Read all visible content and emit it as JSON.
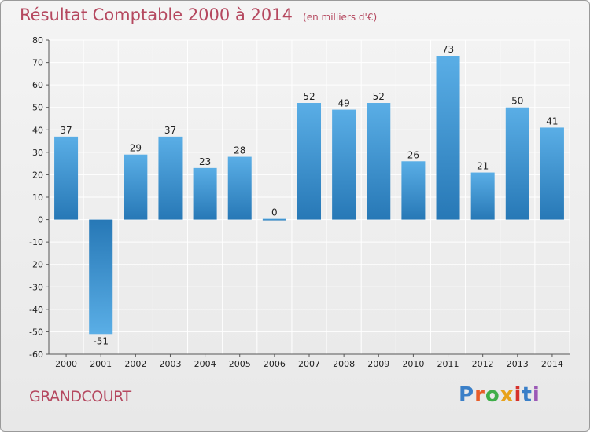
{
  "title": "Résultat Comptable 2000 à 2014",
  "subtitle": "(en milliers d'€)",
  "place": "GRANDCOURT",
  "logo": {
    "text": "Proxiti",
    "letter_colors": [
      "#3a7fc8",
      "#e85d2a",
      "#3fae49",
      "#e8a21a",
      "#d6312b",
      "#3a7fc8",
      "#9b59b6"
    ]
  },
  "colors": {
    "bar_light": "#5aaee6",
    "bar_dark": "#2778b6",
    "grid": "#ffffff",
    "axis_text": "#222222",
    "title": "#b5485f"
  },
  "chart_data": {
    "type": "bar",
    "title": "Résultat Comptable 2000 à 2014",
    "categories": [
      "2000",
      "2001",
      "2002",
      "2003",
      "2004",
      "2005",
      "2006",
      "2007",
      "2008",
      "2009",
      "2010",
      "2011",
      "2012",
      "2013",
      "2014"
    ],
    "values": [
      37,
      -51,
      29,
      37,
      23,
      28,
      0,
      52,
      49,
      52,
      26,
      73,
      21,
      50,
      41
    ],
    "ylim": [
      -60,
      80
    ],
    "yticks": [
      80,
      70,
      60,
      50,
      40,
      30,
      20,
      10,
      0,
      -10,
      -20,
      -30,
      -40,
      -50,
      -60
    ],
    "grid": true,
    "xlabel": "",
    "ylabel": ""
  }
}
